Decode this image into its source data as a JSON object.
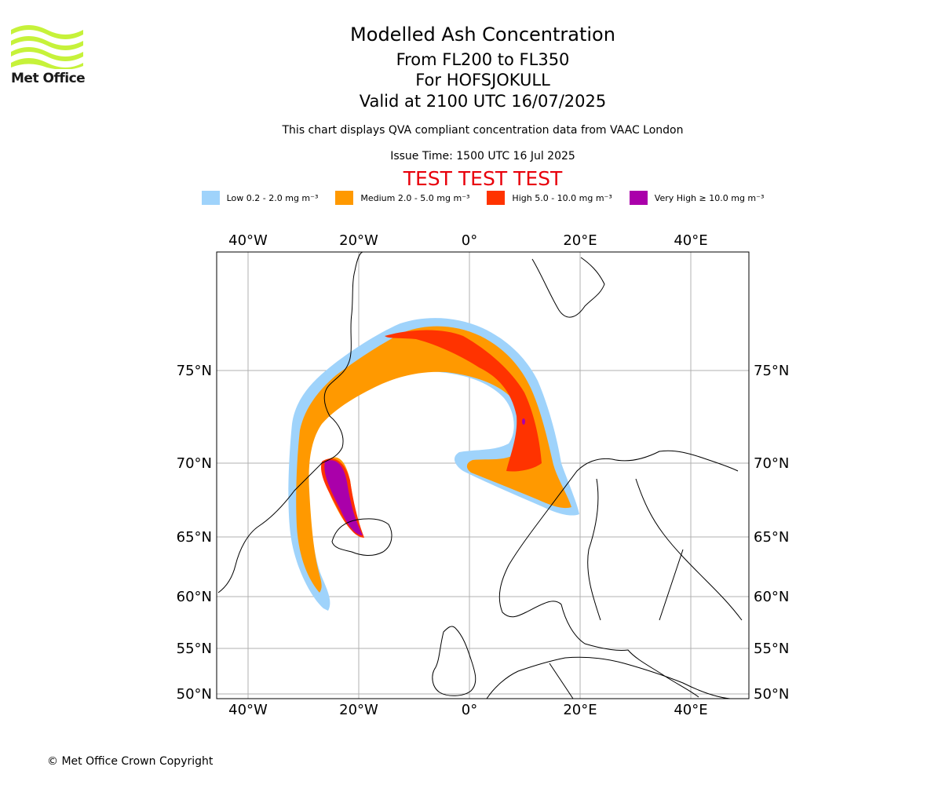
{
  "header": {
    "title": "Modelled Ash Concentration",
    "level_range": "From FL200 to FL350",
    "volcano": "For HOFSJOKULL",
    "valid_time": "Valid at 2100 UTC 16/07/2025",
    "note": "This chart displays QVA compliant concentration data from VAAC London",
    "issue_time": "Issue Time: 1500 UTC 16 Jul 2025",
    "test_banner": "TEST TEST TEST"
  },
  "logo": {
    "text": "Met Office",
    "color": "#c6f23a"
  },
  "legend": [
    {
      "label": "Low 0.2 - 2.0 mg m⁻³",
      "color": "#9fd3fb"
    },
    {
      "label": "Medium 2.0 - 5.0 mg m⁻³",
      "color": "#ff9900"
    },
    {
      "label": "High 5.0 - 10.0 mg m⁻³",
      "color": "#ff3300"
    },
    {
      "label": "Very High ≥ 10.0 mg m⁻³",
      "color": "#aa00aa"
    }
  ],
  "map": {
    "lon_labels": [
      "40°W",
      "20°W",
      "0°",
      "20°E",
      "40°E"
    ],
    "lat_labels": [
      "75°N",
      "70°N",
      "65°N",
      "60°N",
      "55°N",
      "50°N"
    ]
  },
  "footer": {
    "copyright": "© Met Office Crown Copyright"
  }
}
